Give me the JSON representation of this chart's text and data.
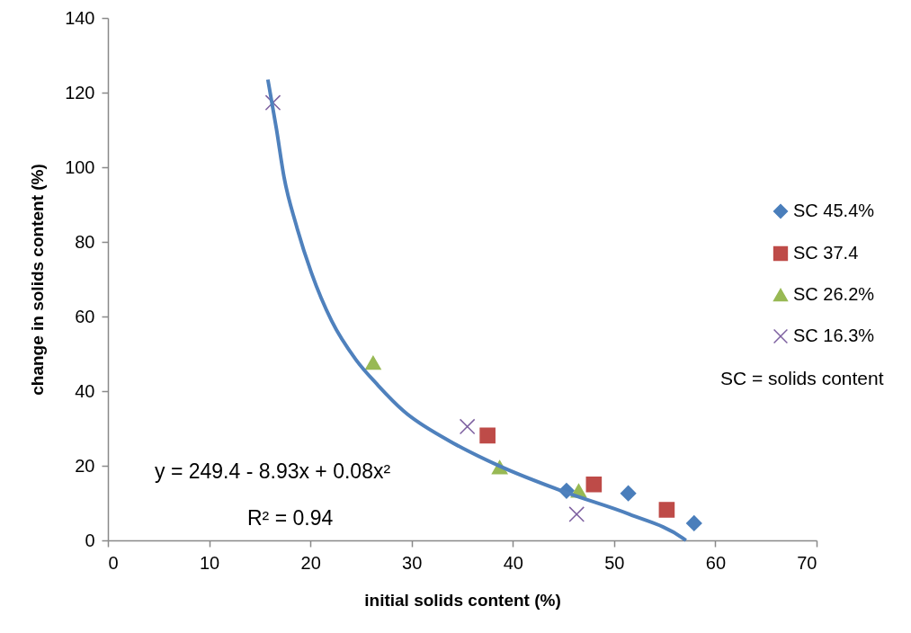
{
  "chart_data": {
    "type": "scatter",
    "xlabel": "initial solids content (%)",
    "ylabel": "change in solids content (%)",
    "xlim": [
      0,
      70
    ],
    "ylim": [
      0,
      140
    ],
    "xticks": [
      0,
      10,
      20,
      30,
      40,
      50,
      60,
      70
    ],
    "yticks": [
      0,
      20,
      40,
      60,
      80,
      100,
      120,
      140
    ],
    "legend": "right",
    "series": [
      {
        "name": "SC 45.4%",
        "color": "#4a7ebb",
        "marker": "diamond",
        "x": [
          45.3,
          51.4,
          57.9
        ],
        "values": [
          13.3,
          12.6,
          4.6
        ]
      },
      {
        "name": "SC 37.4",
        "color": "#be4b48",
        "marker": "square",
        "x": [
          37.5,
          48.0,
          55.2
        ],
        "values": [
          28.1,
          15.0,
          8.2
        ]
      },
      {
        "name": "SC 26.2%",
        "color": "#98b954",
        "marker": "triangle",
        "x": [
          26.2,
          38.7,
          46.5
        ],
        "values": [
          47.6,
          19.6,
          13.3
        ]
      },
      {
        "name": "SC 16.3%",
        "color": "#7d60a0",
        "marker": "cross",
        "x": [
          16.3,
          35.5,
          46.3
        ],
        "values": [
          117.3,
          30.5,
          7.0
        ]
      },
      {
        "type": "line",
        "color": "#4f81bd",
        "marker": "none",
        "x": [
          15.8,
          16.65,
          17.4,
          18.6,
          20.1,
          22.1,
          24.5,
          26.7,
          29.2,
          33.7,
          38.7,
          45.5,
          51.5,
          56.8,
          57.1
        ],
        "values": [
          123.5,
          110.2,
          97.3,
          84.5,
          71.7,
          58.8,
          48.4,
          41.5,
          34.7,
          26.7,
          19.9,
          12.6,
          7.0,
          0.6,
          0.0
        ]
      }
    ],
    "annotations": [
      "SC = solids content",
      "y = 249.4 - 8.93x + 0.08x²",
      "R² = 0.94"
    ]
  }
}
